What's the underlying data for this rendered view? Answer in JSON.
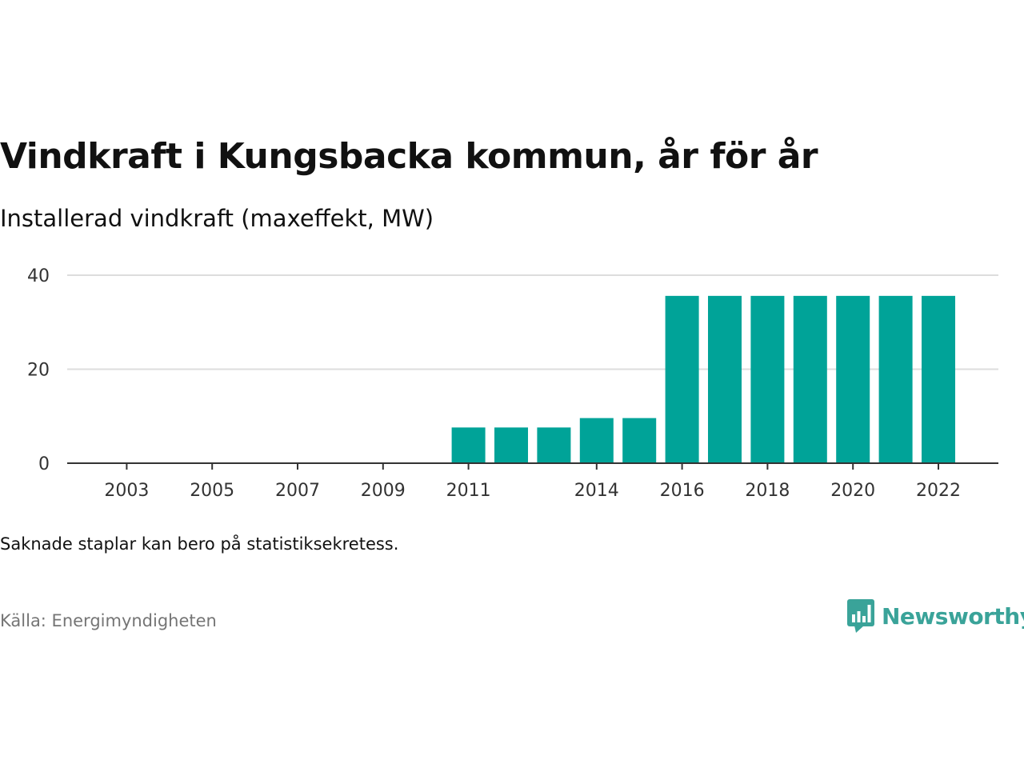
{
  "header": {
    "title": "Vindkraft i Kungsbacka kommun, år för år",
    "subtitle": "Installerad vindkraft (maxeffekt, MW)"
  },
  "footer": {
    "note": "Saknade staplar kan bero på statistiksekretess.",
    "source": "Källa: Energimyndigheten",
    "brand": "Newsworthy",
    "brand_icon": "bar-chart-speech-bubble-icon"
  },
  "colors": {
    "bar": "#00a398",
    "grid": "#dddddd",
    "axis": "#333333",
    "brand": "#3aa399"
  },
  "chart_data": {
    "type": "bar",
    "title": "Vindkraft i Kungsbacka kommun, år för år",
    "subtitle": "Installerad vindkraft (maxeffekt, MW)",
    "categories": [
      "2002",
      "2003",
      "2004",
      "2005",
      "2006",
      "2007",
      "2008",
      "2009",
      "2010",
      "2011",
      "2012",
      "2013",
      "2014",
      "2015",
      "2016",
      "2017",
      "2018",
      "2019",
      "2020",
      "2021",
      "2022",
      "2023"
    ],
    "values": [
      0,
      0,
      0,
      0,
      0,
      0,
      0,
      0,
      0,
      7.6,
      7.6,
      7.6,
      9.6,
      9.6,
      35.6,
      35.6,
      35.6,
      35.6,
      35.6,
      35.6,
      35.6,
      null
    ],
    "x_tick_labels": [
      "2003",
      "2005",
      "2007",
      "2009",
      "2011",
      "2014",
      "2016",
      "2018",
      "2020",
      "2022"
    ],
    "y_ticks": [
      0,
      20,
      40
    ],
    "ylim": [
      0,
      40
    ],
    "xlabel": "",
    "ylabel": "",
    "grid": true,
    "legend": "none"
  }
}
